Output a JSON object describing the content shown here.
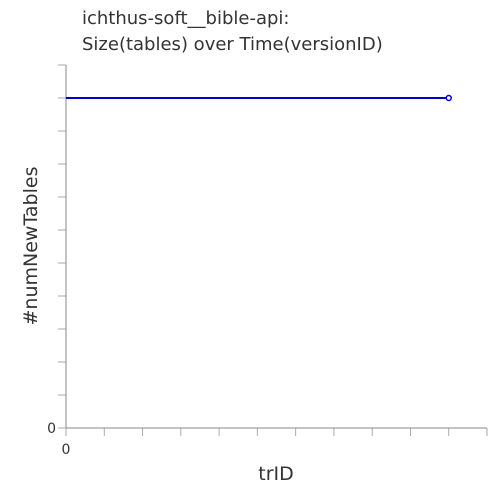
{
  "chart_data": {
    "type": "line",
    "title_lines": [
      "ichthus-soft__bible-api:",
      "Size(tables) over Time(versionID)"
    ],
    "xlabel": "trID",
    "ylabel": "#numNewTables",
    "x_tick_labels": [
      "0"
    ],
    "y_tick_labels": [
      "0"
    ],
    "x_minor_ticks": 11,
    "y_minor_ticks": 11,
    "series": [
      {
        "color": "#0000cc",
        "points": [
          {
            "x": 0,
            "y": 1
          },
          {
            "x": 10,
            "y": 1
          }
        ]
      }
    ],
    "xlim": [
      0,
      11
    ],
    "ylim": [
      0,
      1.1
    ],
    "grid": false
  }
}
